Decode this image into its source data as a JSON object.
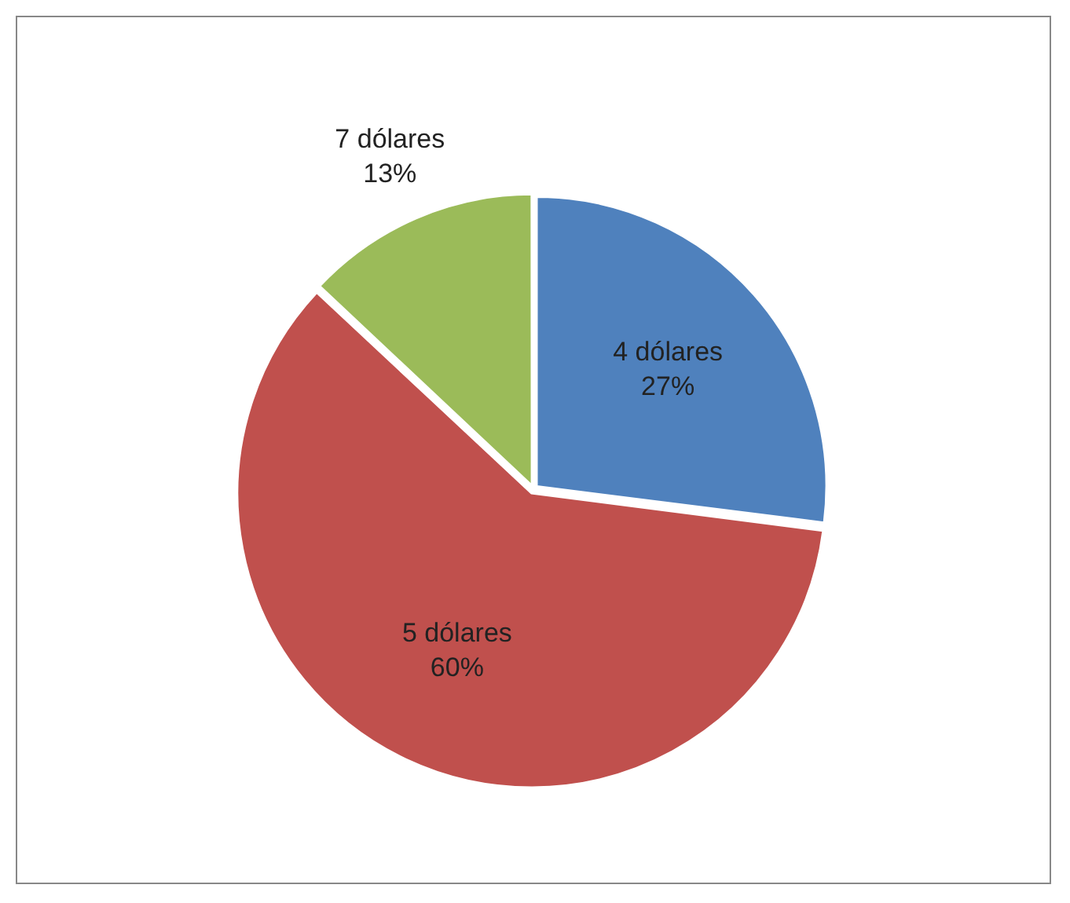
{
  "chart_data": {
    "type": "pie",
    "categories": [
      "4 dólares",
      "5 dólares",
      "7 dólares"
    ],
    "values": [
      27,
      60,
      13
    ],
    "colors": [
      "#4f81bd",
      "#c0504d",
      "#9bbb59"
    ],
    "value_labels": [
      "27%",
      "60%",
      "13%"
    ],
    "legend": false
  }
}
